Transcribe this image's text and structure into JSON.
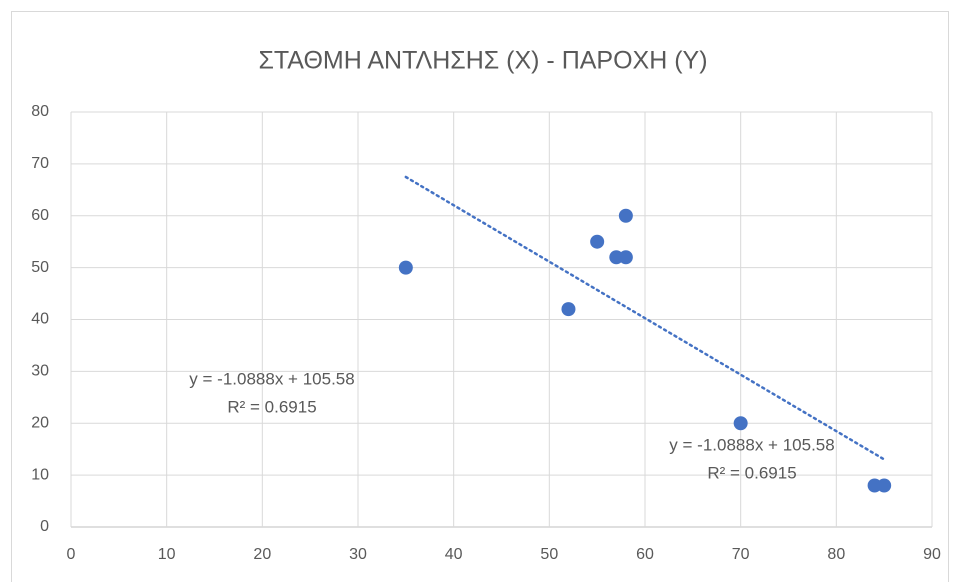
{
  "chart_data": {
    "type": "scatter",
    "title": "ΣΤΑΘΜΗ ΑΝΤΛΗΣΗΣ (Χ) - ΠΑΡΟΧΗ (Υ)",
    "x": [
      35,
      52,
      55,
      57,
      58,
      58,
      70,
      84,
      85
    ],
    "values": [
      50,
      42,
      55,
      52,
      52,
      60,
      20,
      8,
      8
    ],
    "color": "#4472c4",
    "xlim": [
      0,
      90
    ],
    "xticks": [
      0,
      10,
      20,
      30,
      40,
      50,
      60,
      70,
      80,
      90
    ],
    "ylim": [
      0,
      80
    ],
    "yticks": [
      0,
      10,
      20,
      30,
      40,
      50,
      60,
      70,
      80
    ],
    "grid": true,
    "trendline": {
      "slope": -1.0888,
      "intercept": 105.58
    },
    "annotations": [
      {
        "lines": [
          "y = -1.0888x + 105.58",
          "R² = 0.6915"
        ]
      },
      {
        "lines": [
          "y = -1.0888x + 105.58",
          "R² = 0.6915"
        ]
      }
    ]
  }
}
